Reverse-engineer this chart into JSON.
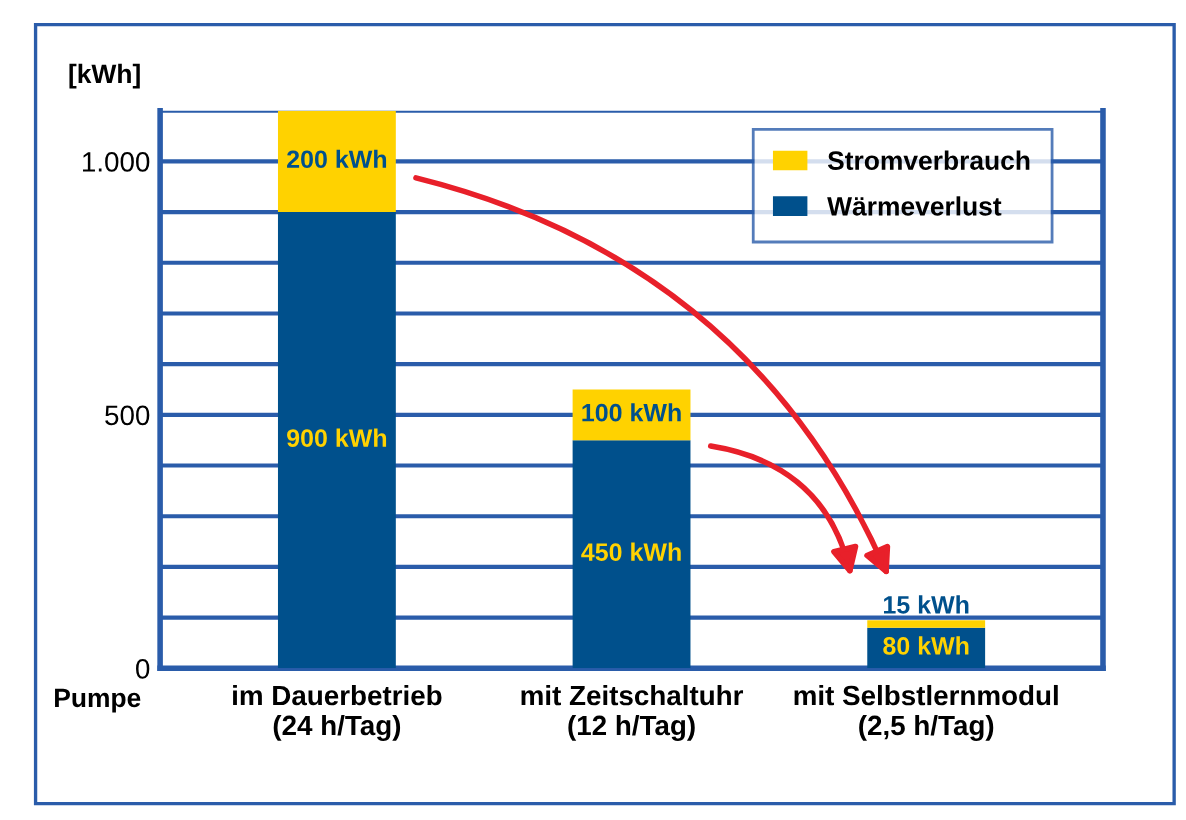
{
  "chart_data": {
    "type": "bar",
    "stacked": true,
    "ylabel": "[kWh]",
    "categories": [
      "im Dauerbetrieb\n(24 h/Tag)",
      "mit Zeitschaltuhr\n(12 h/Tag)",
      "mit Selbstlernmodul\n(2,5 h/Tag)"
    ],
    "series": [
      {
        "name": "Wärmeverlust",
        "color": "#00508c",
        "values": [
          900,
          450,
          80
        ],
        "value_labels": [
          "900 kWh",
          "450 kWh",
          "80 kWh"
        ]
      },
      {
        "name": "Stromverbrauch",
        "color": "#ffd200",
        "values": [
          200,
          100,
          15
        ],
        "value_labels": [
          "200 kWh",
          "100 kWh",
          "15 kWh"
        ]
      }
    ],
    "ylim": [
      0,
      1100
    ],
    "yticks": [
      0,
      {
        "value": 100,
        "label": null
      },
      {
        "value": 200,
        "label": null
      },
      {
        "value": 300,
        "label": null
      },
      {
        "value": 400,
        "label": null
      },
      500,
      {
        "value": 600,
        "label": null
      },
      {
        "value": 700,
        "label": null
      },
      {
        "value": 800,
        "label": null
      },
      {
        "value": 900,
        "label": null
      },
      {
        "value": 1000,
        "label": "1.000"
      },
      {
        "value": 1100,
        "label": null
      }
    ],
    "grid": "y",
    "legend": "top right",
    "annotations": [
      "Pumpe"
    ]
  }
}
